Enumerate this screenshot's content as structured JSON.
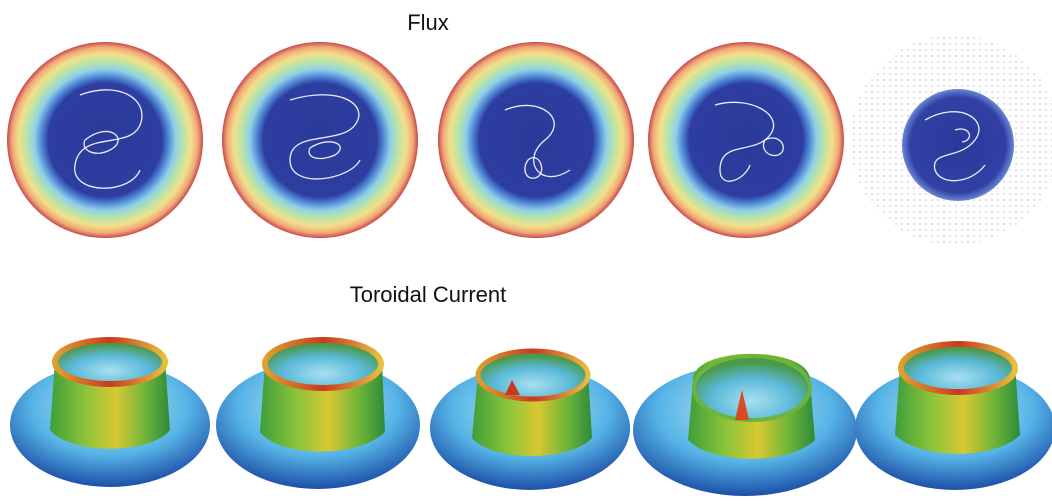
{
  "titles": {
    "flux": "Flux",
    "toroidal_current": "Toroidal Current"
  }
}
